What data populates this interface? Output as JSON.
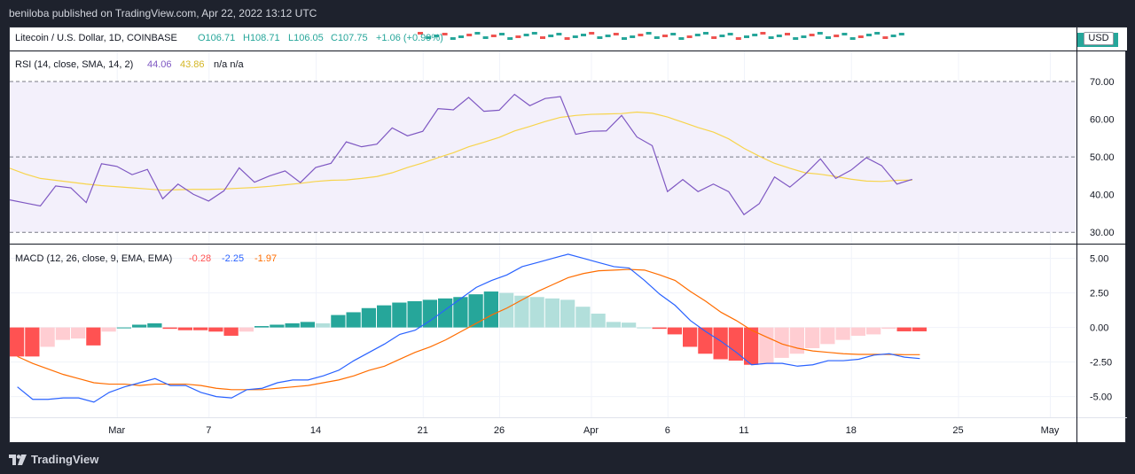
{
  "header": {
    "publish_line": "beniloba published on TradingView.com, Apr 22, 2022 13:12 UTC"
  },
  "main_pane": {
    "symbol_line": "Litecoin / U.S. Dollar, 1D, COINBASE",
    "ohlc": {
      "o": "O106.71",
      "h": "H108.71",
      "l": "L106.05",
      "c": "C107.75",
      "chg": "+1.06 (+0.99%)"
    },
    "currency": "USD"
  },
  "footer": {
    "brand": "TradingView"
  },
  "colors": {
    "rsi_line": "#7e57c2",
    "rsi_ma": "#f7d44c",
    "rsi_band": "#f3f0fb",
    "macd_line": "#2962ff",
    "signal_line": "#ff6d00",
    "hist_up_strong": "#26a69a",
    "hist_up_weak": "#b2dfdb",
    "hist_down_strong": "#ff5252",
    "hist_down_weak": "#ffcdd2"
  },
  "chart_data": [
    {
      "type": "line",
      "title": "RSI (14, close, SMA, 14, 2)",
      "legend": {
        "rsi": "44.06",
        "ma": "43.86",
        "extra": "n/a  n/a"
      },
      "x_tick_labels": [
        "Mar",
        "7",
        "14",
        "21",
        "26",
        "Apr",
        "6",
        "11",
        "18",
        "25",
        "May"
      ],
      "y_ticks": [
        "70.00",
        "60.00",
        "50.00",
        "40.00",
        "30.00"
      ],
      "ylim": [
        27,
        78
      ],
      "levels": [
        70,
        50,
        30
      ],
      "x": [
        "Feb 22",
        "Feb 23",
        "Feb 24",
        "Feb 25",
        "Feb 26",
        "Feb 27",
        "Feb 28",
        "Mar 1",
        "Mar 2",
        "Mar 3",
        "Mar 4",
        "Mar 5",
        "Mar 6",
        "Mar 7",
        "Mar 8",
        "Mar 9",
        "Mar 10",
        "Mar 11",
        "Mar 12",
        "Mar 13",
        "Mar 14",
        "Mar 15",
        "Mar 16",
        "Mar 17",
        "Mar 18",
        "Mar 19",
        "Mar 20",
        "Mar 21",
        "Mar 22",
        "Mar 23",
        "Mar 24",
        "Mar 25",
        "Mar 26",
        "Mar 27",
        "Mar 28",
        "Mar 29",
        "Mar 30",
        "Mar 31",
        "Apr 1",
        "Apr 2",
        "Apr 3",
        "Apr 4",
        "Apr 5",
        "Apr 6",
        "Apr 7",
        "Apr 8",
        "Apr 9",
        "Apr 10",
        "Apr 11",
        "Apr 12",
        "Apr 13",
        "Apr 14",
        "Apr 15",
        "Apr 16",
        "Apr 17",
        "Apr 18",
        "Apr 19",
        "Apr 20",
        "Apr 21",
        "Apr 22"
      ],
      "series": [
        {
          "values": [
            38.6,
            37.8,
            37.0,
            42.3,
            41.8,
            37.9,
            48.2,
            47.5,
            45.3,
            46.7,
            38.9,
            42.8,
            40.1,
            38.3,
            41.0,
            47.1,
            43.3,
            45.0,
            46.3,
            43.2,
            47.2,
            48.3,
            54.0,
            52.7,
            53.4,
            57.7,
            55.6,
            56.8,
            62.8,
            62.5,
            65.8,
            62.1,
            62.4,
            66.6,
            63.6,
            65.5,
            66.0,
            56.0,
            56.8,
            56.9,
            61.0,
            55.3,
            53.0,
            40.8,
            44.0,
            40.8,
            42.8,
            40.8,
            34.7,
            37.6,
            44.7,
            42.0,
            45.4,
            49.5,
            44.3,
            46.5,
            49.8,
            47.7,
            42.8,
            44.06
          ]
        },
        {
          "values": [
            47.0,
            45.5,
            44.3,
            43.8,
            43.3,
            42.8,
            42.4,
            42.1,
            41.8,
            41.5,
            41.2,
            41.3,
            41.4,
            41.4,
            41.5,
            41.7,
            41.9,
            42.2,
            42.6,
            43.0,
            43.5,
            43.8,
            43.9,
            44.3,
            44.8,
            45.8,
            47.2,
            48.4,
            49.8,
            51.1,
            52.7,
            53.9,
            55.2,
            56.9,
            58.1,
            59.4,
            60.5,
            61.0,
            61.3,
            61.4,
            61.5,
            61.9,
            61.6,
            60.6,
            59.2,
            57.8,
            56.6,
            54.8,
            52.3,
            50.2,
            48.3,
            47.0,
            45.8,
            45.4,
            44.8,
            44.1,
            43.6,
            43.5,
            43.8,
            43.86
          ]
        }
      ]
    },
    {
      "type": "bar",
      "title": "MACD (12, 26, close, 9, EMA, EMA)",
      "legend": {
        "hist": "-0.28",
        "macd": "-2.25",
        "signal": "-1.97"
      },
      "y_ticks": [
        "5.00",
        "2.50",
        "0.00",
        "-2.50",
        "-5.00"
      ],
      "ylim": [
        -6.5,
        6.0
      ],
      "x_tick_labels": [
        "Mar",
        "7",
        "14",
        "21",
        "26",
        "Apr",
        "6",
        "11",
        "18",
        "25",
        "May"
      ],
      "series": [
        {
          "name": "Histogram",
          "values": [
            -2.1,
            -2.1,
            -1.4,
            -0.9,
            -0.8,
            -1.3,
            -0.3,
            0.0,
            0.2,
            0.3,
            -0.1,
            -0.2,
            -0.2,
            -0.3,
            -0.6,
            -0.3,
            0.1,
            0.2,
            0.3,
            0.4,
            0.3,
            0.9,
            1.1,
            1.4,
            1.6,
            1.8,
            1.9,
            2.0,
            2.1,
            2.2,
            2.4,
            2.6,
            2.5,
            2.3,
            2.2,
            2.1,
            2.0,
            1.5,
            1.0,
            0.4,
            0.35,
            0.0,
            -0.1,
            -0.5,
            -1.4,
            -1.9,
            -2.3,
            -2.4,
            -2.7,
            -2.6,
            -2.2,
            -1.9,
            -1.5,
            -1.2,
            -0.9,
            -0.6,
            -0.5,
            -0.1,
            -0.28,
            -0.28
          ]
        },
        {
          "name": "MACD",
          "values": [
            -4.3,
            -5.2,
            -5.2,
            -5.1,
            -5.1,
            -5.4,
            -4.7,
            -4.3,
            -4.0,
            -3.7,
            -4.2,
            -4.2,
            -4.7,
            -5.0,
            -5.1,
            -4.5,
            -4.4,
            -4.0,
            -3.8,
            -3.8,
            -3.5,
            -3.1,
            -2.4,
            -1.8,
            -1.2,
            -0.5,
            -0.2,
            0.5,
            1.3,
            2.1,
            2.9,
            3.4,
            3.8,
            4.4,
            4.7,
            5.0,
            5.3,
            5.0,
            4.7,
            4.4,
            4.3,
            3.4,
            2.4,
            1.6,
            0.5,
            -0.3,
            -1.0,
            -1.8,
            -2.7,
            -2.6,
            -2.6,
            -2.8,
            -2.7,
            -2.4,
            -2.4,
            -2.3,
            -2.0,
            -1.9,
            -2.15,
            -2.25
          ]
        },
        {
          "name": "Signal",
          "values": [
            -2.1,
            -2.6,
            -3.0,
            -3.4,
            -3.7,
            -4.0,
            -4.1,
            -4.1,
            -4.2,
            -4.1,
            -4.1,
            -4.1,
            -4.2,
            -4.4,
            -4.5,
            -4.5,
            -4.5,
            -4.4,
            -4.3,
            -4.2,
            -4.0,
            -3.8,
            -3.5,
            -3.1,
            -2.8,
            -2.3,
            -1.8,
            -1.4,
            -0.9,
            -0.3,
            0.3,
            0.9,
            1.4,
            2.0,
            2.6,
            3.1,
            3.6,
            3.9,
            4.1,
            4.15,
            4.2,
            4.15,
            3.8,
            3.4,
            2.6,
            1.9,
            1.1,
            0.5,
            -0.2,
            -0.7,
            -1.2,
            -1.5,
            -1.7,
            -1.8,
            -1.9,
            -1.95,
            -1.95,
            -1.95,
            -1.97,
            -1.97
          ]
        }
      ]
    }
  ]
}
